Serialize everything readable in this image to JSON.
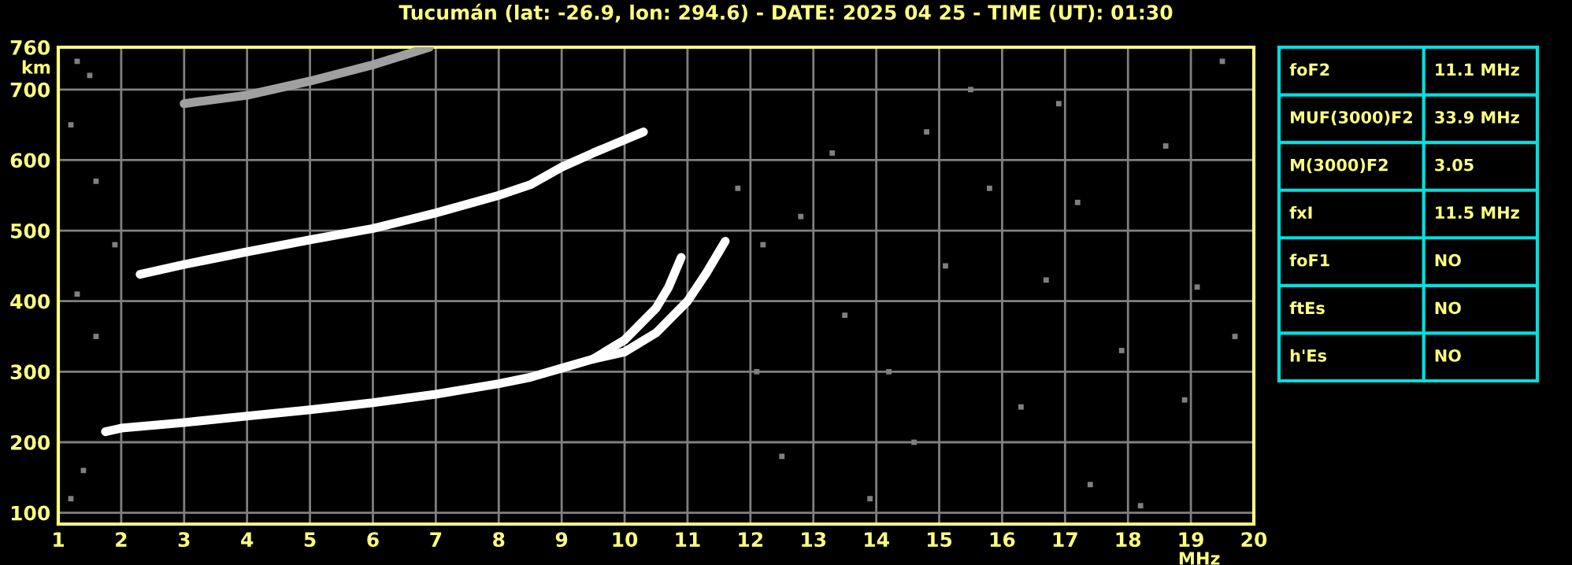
{
  "chart_data": [
    {
      "type": "line",
      "title": "Tucumán (lat: -26.9, lon: 294.6) - DATE: 2025 04 25 - TIME (UT): 01:30",
      "xlabel": "MHz",
      "ylabel": "km",
      "xlim": [
        1,
        20
      ],
      "xticks": [
        1,
        2,
        3,
        4,
        5,
        6,
        7,
        8,
        9,
        10,
        11,
        12,
        13,
        14,
        15,
        16,
        17,
        18,
        19,
        20
      ],
      "ylim": [
        84,
        760
      ],
      "yticks": [
        100,
        200,
        300,
        400,
        500,
        600,
        700,
        760
      ],
      "grid": true,
      "marker": "none",
      "line_style": "solid",
      "series": [
        {
          "color": "#ffffff",
          "x": [
            1.75,
            2,
            3,
            4,
            5,
            6,
            7,
            8,
            8.5,
            9,
            9.5,
            10,
            10.5,
            10.7,
            10.9
          ],
          "values": [
            215,
            220,
            228,
            237,
            246,
            256,
            268,
            283,
            292,
            305,
            318,
            345,
            390,
            420,
            462
          ]
        },
        {
          "color": "#ffffff",
          "x": [
            9.5,
            10,
            10.5,
            11,
            11.3,
            11.6
          ],
          "values": [
            318,
            328,
            355,
            400,
            440,
            485
          ]
        },
        {
          "color": "#ffffff",
          "x": [
            2.3,
            3,
            4,
            5,
            6,
            7,
            8,
            8.5,
            9,
            9.5,
            10.3
          ],
          "values": [
            438,
            452,
            470,
            487,
            503,
            525,
            550,
            565,
            590,
            610,
            640
          ]
        },
        {
          "color": "#a0a0a0",
          "x": [
            3,
            4,
            5,
            6,
            6.9
          ],
          "values": [
            680,
            692,
            712,
            735,
            760
          ]
        },
        {
          "type": "scatter",
          "marker": "square",
          "color": "#808080",
          "x": [
            1.3,
            1.5,
            1.2,
            1.6,
            1.9,
            1.3,
            1.6,
            1.4,
            1.2,
            12.2,
            12.8,
            13.3,
            13.5,
            14.2,
            14.6,
            15.1,
            15.8,
            16.3,
            16.9,
            17.4,
            17.9,
            18.2,
            18.6,
            19.1,
            19.5,
            12.5,
            13.9,
            15.5,
            16.7,
            18.9,
            17.2,
            14.8,
            12.1,
            19.7,
            11.8
          ],
          "values": [
            740,
            720,
            650,
            570,
            480,
            410,
            350,
            160,
            120,
            480,
            520,
            610,
            380,
            300,
            200,
            450,
            560,
            250,
            680,
            140,
            330,
            110,
            620,
            420,
            740,
            180,
            120,
            700,
            430,
            260,
            540,
            640,
            300,
            350,
            560
          ]
        }
      ]
    },
    {
      "type": "other",
      "annotations": [
        "foF2",
        "11.1 MHz",
        "MUF(3000)F2",
        "33.9 MHz",
        "M(3000)F2",
        "3.05",
        "fxI",
        "11.5 MHz",
        "foF1",
        "NO",
        "ftEs",
        "NO",
        "h'Es",
        "NO"
      ]
    }
  ]
}
